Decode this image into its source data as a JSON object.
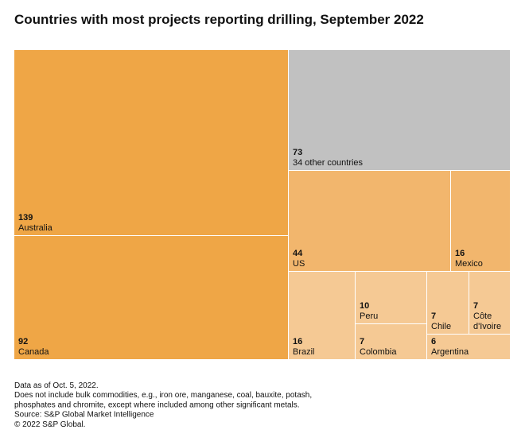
{
  "chart_data": {
    "type": "treemap",
    "title": "Countries with most projects reporting drilling, September 2022",
    "categories": [
      "Australia",
      "Canada",
      "34 other countries",
      "US",
      "Mexico",
      "Brazil",
      "Peru",
      "Colombia",
      "Chile",
      "Côte d'Ivoire",
      "Argentina"
    ],
    "values": [
      139,
      92,
      73,
      44,
      16,
      16,
      10,
      7,
      7,
      7,
      6
    ],
    "colors": [
      "#efa646",
      "#efa646",
      "#c1c1c1",
      "#f2b66d",
      "#f2b66d",
      "#f5c994",
      "#f5c994",
      "#f5c994",
      "#f5c994",
      "#f5c994",
      "#f5c994"
    ],
    "notes": [
      "Data as of Oct. 5, 2022.",
      "Does not include bulk commodities, e.g., iron ore, manganese, coal, bauxite, potash,",
      "phosphates and chromite, except where included among other significant metals.",
      "Source: S&P Global Market Intelligence",
      "© 2022 S&P Global."
    ]
  }
}
